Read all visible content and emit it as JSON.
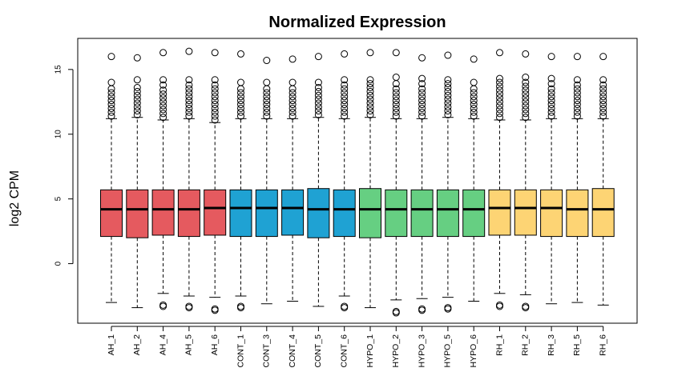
{
  "chart_data": {
    "type": "boxplot",
    "title": "Normalized Expression",
    "xlabel": "",
    "ylabel": "log2 CPM",
    "ylim": [
      -4.6,
      17.4
    ],
    "yticks": [
      0,
      5,
      10,
      15
    ],
    "ytick_labels": [
      "0",
      "5",
      "10",
      "15"
    ],
    "grid": false,
    "legend": "none",
    "categories": [
      "AH_1",
      "AH_2",
      "AH_4",
      "AH_5",
      "AH_6",
      "CONT_1",
      "CONT_3",
      "CONT_4",
      "CONT_5",
      "CONT_6",
      "HYPO_1",
      "HYPO_2",
      "HYPO_3",
      "HYPO_5",
      "HYPO_6",
      "RH_1",
      "RH_2",
      "RH_3",
      "RH_5",
      "RH_6"
    ],
    "group_colors": {
      "AH": "#E55A5F",
      "CONT": "#1FA2D3",
      "HYPO": "#66CF82",
      "RH": "#FDD474"
    },
    "boxes": [
      {
        "category": "AH_1",
        "group": "AH",
        "min": -3.0,
        "q1": 2.1,
        "median": 4.2,
        "q3": 5.7,
        "max": 11.2,
        "outliers_high": [
          11.4,
          11.7,
          12.0,
          12.3,
          12.6,
          12.9,
          13.2,
          13.5,
          14.0,
          16.0
        ],
        "outliers_low": []
      },
      {
        "category": "AH_2",
        "group": "AH",
        "min": -3.4,
        "q1": 2.0,
        "median": 4.2,
        "q3": 5.7,
        "max": 11.3,
        "outliers_high": [
          11.5,
          11.8,
          12.1,
          12.4,
          12.7,
          13.0,
          13.3,
          13.6,
          14.2,
          15.9
        ],
        "outliers_low": []
      },
      {
        "category": "AH_4",
        "group": "AH",
        "min": -2.3,
        "q1": 2.2,
        "median": 4.2,
        "q3": 5.7,
        "max": 11.1,
        "outliers_high": [
          11.3,
          11.6,
          11.9,
          12.2,
          12.5,
          12.8,
          13.1,
          13.4,
          13.8,
          14.2,
          16.3
        ],
        "outliers_low": [
          -3.2,
          -3.3
        ]
      },
      {
        "category": "AH_5",
        "group": "AH",
        "min": -2.5,
        "q1": 2.1,
        "median": 4.2,
        "q3": 5.7,
        "max": 11.2,
        "outliers_high": [
          11.4,
          11.7,
          12.0,
          12.3,
          12.6,
          12.9,
          13.2,
          13.5,
          13.8,
          14.2,
          16.4
        ],
        "outliers_low": [
          -3.3,
          -3.4
        ]
      },
      {
        "category": "AH_6",
        "group": "AH",
        "min": -2.6,
        "q1": 2.2,
        "median": 4.3,
        "q3": 5.7,
        "max": 10.9,
        "outliers_high": [
          11.1,
          11.4,
          11.7,
          12.0,
          12.3,
          12.6,
          12.9,
          13.2,
          13.5,
          13.8,
          14.2,
          16.3
        ],
        "outliers_low": [
          -3.5,
          -3.6
        ]
      },
      {
        "category": "CONT_1",
        "group": "CONT",
        "min": -2.5,
        "q1": 2.1,
        "median": 4.3,
        "q3": 5.7,
        "max": 11.2,
        "outliers_high": [
          11.4,
          11.7,
          12.0,
          12.3,
          12.6,
          12.9,
          13.2,
          13.5,
          14.0,
          16.2
        ],
        "outliers_low": [
          -3.3,
          -3.4
        ]
      },
      {
        "category": "CONT_3",
        "group": "CONT",
        "min": -3.1,
        "q1": 2.1,
        "median": 4.3,
        "q3": 5.7,
        "max": 11.2,
        "outliers_high": [
          11.4,
          11.7,
          12.0,
          12.3,
          12.6,
          12.9,
          13.2,
          13.5,
          14.0,
          15.7
        ],
        "outliers_low": []
      },
      {
        "category": "CONT_4",
        "group": "CONT",
        "min": -2.9,
        "q1": 2.2,
        "median": 4.3,
        "q3": 5.7,
        "max": 11.2,
        "outliers_high": [
          11.4,
          11.7,
          12.0,
          12.3,
          12.6,
          12.9,
          13.2,
          13.5,
          14.0,
          15.8
        ],
        "outliers_low": []
      },
      {
        "category": "CONT_5",
        "group": "CONT",
        "min": -3.3,
        "q1": 2.0,
        "median": 4.2,
        "q3": 5.8,
        "max": 11.3,
        "outliers_high": [
          11.5,
          11.8,
          12.1,
          12.4,
          12.7,
          13.0,
          13.3,
          13.6,
          14.0,
          16.0
        ],
        "outliers_low": []
      },
      {
        "category": "CONT_6",
        "group": "CONT",
        "min": -2.5,
        "q1": 2.1,
        "median": 4.2,
        "q3": 5.7,
        "max": 11.2,
        "outliers_high": [
          11.4,
          11.7,
          12.0,
          12.3,
          12.6,
          12.9,
          13.2,
          13.5,
          13.8,
          14.2,
          16.2
        ],
        "outliers_low": [
          -3.3,
          -3.4
        ]
      },
      {
        "category": "HYPO_1",
        "group": "HYPO",
        "min": -3.4,
        "q1": 2.0,
        "median": 4.2,
        "q3": 5.8,
        "max": 11.3,
        "outliers_high": [
          11.5,
          11.8,
          12.1,
          12.4,
          12.7,
          13.0,
          13.3,
          13.6,
          13.9,
          14.2,
          16.3
        ],
        "outliers_low": []
      },
      {
        "category": "HYPO_2",
        "group": "HYPO",
        "min": -2.8,
        "q1": 2.1,
        "median": 4.2,
        "q3": 5.7,
        "max": 11.2,
        "outliers_high": [
          11.4,
          11.7,
          12.0,
          12.3,
          12.6,
          12.9,
          13.2,
          13.5,
          13.9,
          14.4,
          16.3
        ],
        "outliers_low": [
          -3.7,
          -3.8
        ]
      },
      {
        "category": "HYPO_3",
        "group": "HYPO",
        "min": -2.7,
        "q1": 2.1,
        "median": 4.2,
        "q3": 5.7,
        "max": 11.2,
        "outliers_high": [
          11.4,
          11.7,
          12.0,
          12.3,
          12.6,
          12.9,
          13.2,
          13.5,
          13.9,
          14.3,
          15.9
        ],
        "outliers_low": [
          -3.5,
          -3.6
        ]
      },
      {
        "category": "HYPO_5",
        "group": "HYPO",
        "min": -2.6,
        "q1": 2.1,
        "median": 4.2,
        "q3": 5.7,
        "max": 11.3,
        "outliers_high": [
          11.5,
          11.8,
          12.1,
          12.4,
          12.7,
          13.0,
          13.3,
          13.6,
          13.9,
          14.2,
          16.1
        ],
        "outliers_low": [
          -3.4,
          -3.5
        ]
      },
      {
        "category": "HYPO_6",
        "group": "HYPO",
        "min": -2.9,
        "q1": 2.1,
        "median": 4.2,
        "q3": 5.7,
        "max": 11.2,
        "outliers_high": [
          11.4,
          11.7,
          12.0,
          12.3,
          12.6,
          12.9,
          13.2,
          13.5,
          14.0,
          15.8
        ],
        "outliers_low": []
      },
      {
        "category": "RH_1",
        "group": "RH",
        "min": -2.3,
        "q1": 2.2,
        "median": 4.3,
        "q3": 5.7,
        "max": 11.1,
        "outliers_high": [
          11.3,
          11.6,
          11.9,
          12.2,
          12.5,
          12.8,
          13.1,
          13.4,
          13.7,
          14.0,
          14.3,
          16.3
        ],
        "outliers_low": [
          -3.2,
          -3.3
        ]
      },
      {
        "category": "RH_2",
        "group": "RH",
        "min": -2.4,
        "q1": 2.2,
        "median": 4.3,
        "q3": 5.7,
        "max": 11.1,
        "outliers_high": [
          11.3,
          11.6,
          11.9,
          12.2,
          12.5,
          12.8,
          13.1,
          13.4,
          13.7,
          14.0,
          14.4,
          16.2
        ],
        "outliers_low": [
          -3.3,
          -3.4
        ]
      },
      {
        "category": "RH_3",
        "group": "RH",
        "min": -3.1,
        "q1": 2.1,
        "median": 4.3,
        "q3": 5.7,
        "max": 11.2,
        "outliers_high": [
          11.4,
          11.7,
          12.0,
          12.3,
          12.6,
          12.9,
          13.2,
          13.5,
          13.9,
          14.3,
          16.0
        ],
        "outliers_low": []
      },
      {
        "category": "RH_5",
        "group": "RH",
        "min": -3.0,
        "q1": 2.1,
        "median": 4.2,
        "q3": 5.7,
        "max": 11.2,
        "outliers_high": [
          11.4,
          11.7,
          12.0,
          12.3,
          12.6,
          12.9,
          13.2,
          13.5,
          13.8,
          14.2,
          16.0
        ],
        "outliers_low": []
      },
      {
        "category": "RH_6",
        "group": "RH",
        "min": -3.2,
        "q1": 2.1,
        "median": 4.2,
        "q3": 5.8,
        "max": 11.2,
        "outliers_high": [
          11.4,
          11.7,
          12.0,
          12.3,
          12.6,
          12.9,
          13.2,
          13.5,
          13.8,
          14.2,
          16.0
        ],
        "outliers_low": []
      }
    ]
  }
}
